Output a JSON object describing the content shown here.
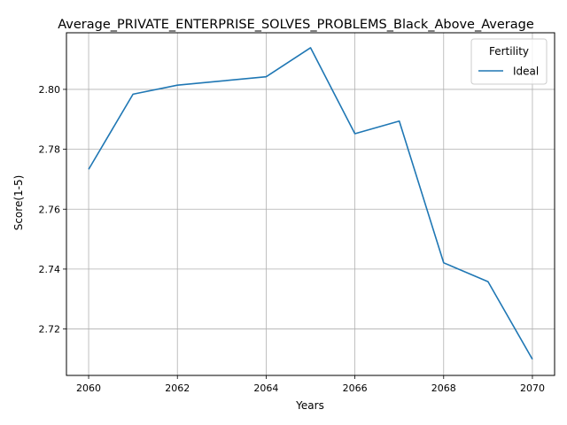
{
  "chart_data": {
    "type": "line",
    "title": "Average_PRIVATE_ENTERPRISE_SOLVES_PROBLEMS_Black_Above_Average",
    "xlabel": "Years",
    "ylabel": "Score(1-5)",
    "x": [
      2060,
      2061,
      2062,
      2063,
      2064,
      2065,
      2066,
      2067,
      2068,
      2069,
      2070
    ],
    "series": [
      {
        "name": "Ideal",
        "color": "#1f77b4",
        "values": [
          2.7733,
          2.7984,
          2.8014,
          2.8028,
          2.8042,
          2.8139,
          2.7852,
          2.7894,
          2.7421,
          2.7358,
          2.7099
        ]
      }
    ],
    "xlim": [
      2059.5,
      2070.5
    ],
    "ylim": [
      2.7045,
      2.8189
    ],
    "xticks": [
      2060,
      2062,
      2064,
      2066,
      2068,
      2070
    ],
    "xtick_labels": [
      "2060",
      "2062",
      "2064",
      "2066",
      "2068",
      "2070"
    ],
    "yticks": [
      2.72,
      2.74,
      2.76,
      2.78,
      2.8
    ],
    "ytick_labels": [
      "2.72",
      "2.74",
      "2.76",
      "2.78",
      "2.80"
    ],
    "grid": true,
    "legend": {
      "title": "Fertility",
      "placement": "top-right"
    }
  }
}
